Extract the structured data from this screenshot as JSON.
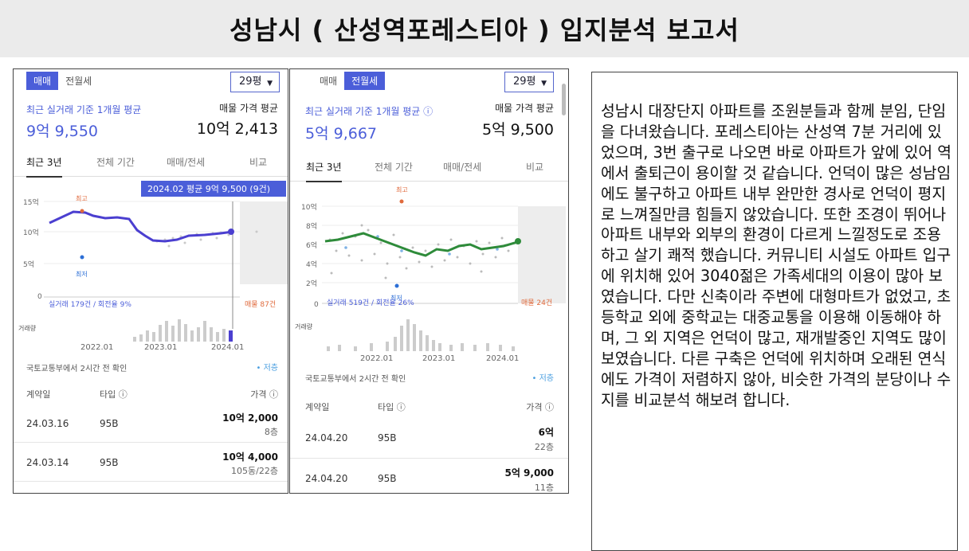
{
  "title": "성남시 ( 산성역포레스티아 ) 입지분석 보고서",
  "colors": {
    "accent": "#4b5ed9",
    "line_green": "#2e8b3a",
    "high_marker": "#e06a3c",
    "low_marker": "#2c6fd6"
  },
  "panel_a": {
    "tab_sale": "매매",
    "tab_jeonse": "전월세",
    "active_tab": "매매",
    "pyeong": "29평",
    "recent_label": "최근 실거래 기준 1개월 평균",
    "recent_value": "9억 9,550",
    "ask_label": "매물 가격 평균",
    "ask_value": "10억 2,413",
    "period_tabs": [
      "최근 3년",
      "전체 기간",
      "매매/전세",
      "비교"
    ],
    "tooltip": "2024.02 평균 9억 9,500 (9건)",
    "y_ticks": [
      "15억",
      "10억",
      "5억",
      "0"
    ],
    "high_label": "최고",
    "low_label": "최저",
    "deal_count": "실거래 179건 / 회전율 9%",
    "listing_count": "매물 87건",
    "volume_label": "거래량",
    "x_ticks": [
      "2022.01",
      "2023.01",
      "2024.01"
    ],
    "source": "국토교통부에서 2시간 전 확인",
    "save": "• 저층",
    "col_date": "계약일",
    "col_type": "타입 ⓘ",
    "col_price": "가격 ⓘ",
    "rows": [
      {
        "date": "24.03.16",
        "type": "95B",
        "price": "10억 2,000",
        "floor": "8층"
      },
      {
        "date": "24.03.14",
        "type": "95B",
        "price": "10억 4,000",
        "floor": "105동/22층"
      }
    ]
  },
  "panel_b": {
    "tab_sale": "매매",
    "tab_jeonse": "전월세",
    "active_tab": "전월세",
    "pyeong": "29평",
    "recent_label": "최근 실거래 기준 1개월 평균 ⓘ",
    "recent_value": "5억 9,667",
    "ask_label": "매물 가격 평균",
    "ask_value": "5억 9,500",
    "period_tabs": [
      "최근 3년",
      "전체 기간",
      "매매/전세",
      "비교"
    ],
    "y_ticks": [
      "10억",
      "8억",
      "6억",
      "4억",
      "2억",
      "0"
    ],
    "high_label": "최고",
    "low_label": "최저",
    "deal_count": "실거래 519건 / 회전율 26%",
    "listing_count": "매물 24건",
    "volume_label": "거래량",
    "x_ticks": [
      "2022.01",
      "2023.01",
      "2024.01"
    ],
    "source": "국토교통부에서 2시간 전 확인",
    "save": "• 저층",
    "col_date": "계약일",
    "col_type": "타입 ⓘ",
    "col_price": "가격 ⓘ",
    "rows": [
      {
        "date": "24.04.20",
        "type": "95B",
        "price": "6억",
        "floor": "22층"
      },
      {
        "date": "24.04.20",
        "type": "95B",
        "price": "5억 9,000",
        "floor": "11층"
      }
    ]
  },
  "report_text": "성남시 대장단지 아파트를 조원분들과 함께 분임, 단임을 다녀왔습니다. 포레스티아는 산성역 7분 거리에 있었으며, 3번 출구로 나오면 바로 아파트가 앞에 있어 역에서 출퇴근이 용이할 것 같습니다. 언덕이 많은 성남임에도 불구하고 아파트 내부 완만한 경사로 언덕이 평지로 느껴질만큼 힘들지 않았습니다. 또한 조경이 뛰어나 아파트 내부와 외부의 환경이 다르게 느낄정도로 조용하고 살기 쾌적 했습니다. 커뮤니티 시설도 아파트 입구에 위치해 있어 3040젊은 가족세대의 이용이 많아 보였습니다. 다만 신축이라 주변에 대형마트가 없었고, 초등학교 외에 중학교는 대중교통을 이용해 이동해야 하며, 그 외 지역은 언덕이 많고, 재개발중인 지역도 많이 보였습니다. 다른 구축은 언덕에 위치하며 오래된 연식에도 가격이 저렴하지 않아, 비슷한 가격의 분당이나 수지를 비교분석 해보려 합니다."
}
